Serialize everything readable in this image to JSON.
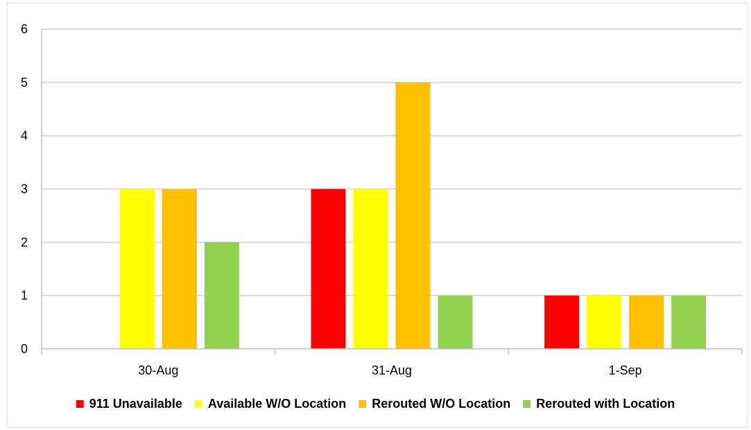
{
  "chart_data": {
    "type": "bar",
    "title": "",
    "xlabel": "",
    "ylabel": "",
    "categories": [
      "30-Aug",
      "31-Aug",
      "1-Sep"
    ],
    "series": [
      {
        "name": "911 Unavailable",
        "color": "#ff0000",
        "values": [
          0,
          3,
          1
        ]
      },
      {
        "name": "Available W/O Location",
        "color": "#ffff00",
        "values": [
          3,
          3,
          1
        ]
      },
      {
        "name": "Rerouted W/O Location",
        "color": "#ffc000",
        "values": [
          3,
          5,
          1
        ]
      },
      {
        "name": "Rerouted with Location",
        "color": "#92d050",
        "values": [
          2,
          1,
          1
        ]
      }
    ],
    "ylim": [
      0,
      6
    ],
    "yticks": [
      0,
      1,
      2,
      3,
      4,
      5,
      6
    ],
    "grid": true,
    "legend": "bottom"
  }
}
